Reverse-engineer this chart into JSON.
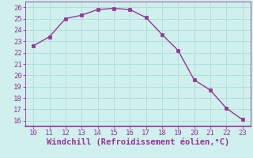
{
  "x": [
    10,
    11,
    12,
    13,
    14,
    15,
    16,
    17,
    18,
    19,
    20,
    21,
    22,
    23
  ],
  "y": [
    22.6,
    23.4,
    25.0,
    25.3,
    25.8,
    25.9,
    25.8,
    25.1,
    23.6,
    22.2,
    19.6,
    18.7,
    17.1,
    16.1
  ],
  "line_color": "#993399",
  "marker_color": "#993399",
  "bg_color": "#cff0ec",
  "grid_color": "#aaddd8",
  "xlabel": "Windchill (Refroidissement éolien,°C)",
  "xlabel_color": "#993399",
  "xlim": [
    9.5,
    23.5
  ],
  "ylim": [
    15.5,
    26.5
  ],
  "xticks": [
    10,
    11,
    12,
    13,
    14,
    15,
    16,
    17,
    18,
    19,
    20,
    21,
    22,
    23
  ],
  "yticks": [
    16,
    17,
    18,
    19,
    20,
    21,
    22,
    23,
    24,
    25,
    26
  ],
  "tick_color": "#993399",
  "tick_fontsize": 6.5,
  "xlabel_fontsize": 7.5,
  "spine_color": "#993399"
}
